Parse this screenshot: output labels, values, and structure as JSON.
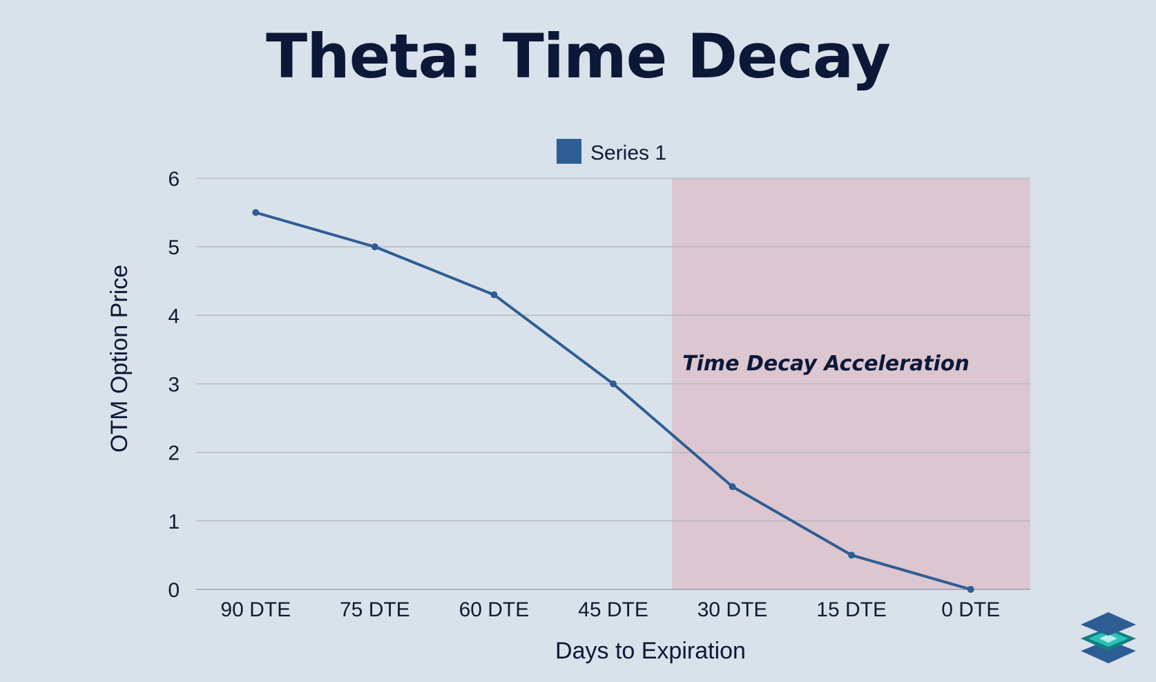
{
  "title": "Theta: Time Decay",
  "colors": {
    "background": "#d9e1ea",
    "series": "#2e5d94",
    "highlight_region": "#dcc6d0",
    "title": "#0c1838",
    "grid": "#b0b6c2"
  },
  "logo": {
    "icon": "stacked-layers-logo-icon"
  },
  "chart_data": {
    "type": "line",
    "title": "Theta: Time Decay",
    "xlabel": "Days to Expiration",
    "ylabel": "OTM Option Price",
    "categories": [
      "90 DTE",
      "75 DTE",
      "60 DTE",
      "45 DTE",
      "30 DTE",
      "15 DTE",
      "0 DTE"
    ],
    "series": [
      {
        "name": "Series 1",
        "values": [
          5.5,
          5.0,
          4.3,
          3.0,
          1.5,
          0.5,
          0.0
        ]
      }
    ],
    "ylim": [
      0,
      6
    ],
    "yticks": [
      "0",
      "1",
      "2",
      "3",
      "4",
      "5",
      "6"
    ],
    "grid": true,
    "legend": "top-center",
    "highlight_region": {
      "from": "between 45 DTE and 30 DTE",
      "to": "0 DTE",
      "label": "Time Decay Acceleration"
    }
  }
}
